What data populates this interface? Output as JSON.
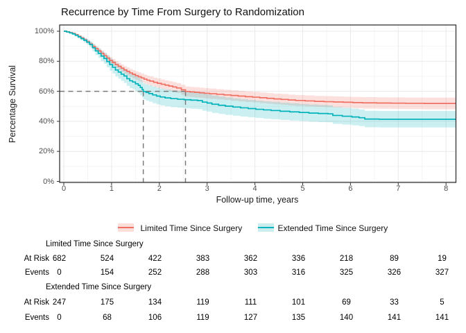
{
  "title": "Recurrence by Time From Surgery to Randomization",
  "axes": {
    "x_label": "Follow-up time, years",
    "y_label": "Percentage Survival",
    "x_ticks": [
      {
        "v": 0,
        "label": "0"
      },
      {
        "v": 1,
        "label": "1"
      },
      {
        "v": 2,
        "label": "2"
      },
      {
        "v": 3,
        "label": "3"
      },
      {
        "v": 4,
        "label": "4"
      },
      {
        "v": 5,
        "label": "5"
      },
      {
        "v": 6,
        "label": "6"
      },
      {
        "v": 7,
        "label": "7"
      },
      {
        "v": 8,
        "label": "8"
      }
    ],
    "y_ticks": [
      {
        "v": 0,
        "label": "0%"
      },
      {
        "v": 20,
        "label": "20%"
      },
      {
        "v": 40,
        "label": "40%"
      },
      {
        "v": 60,
        "label": "60%"
      },
      {
        "v": 80,
        "label": "80%"
      },
      {
        "v": 100,
        "label": "100%"
      }
    ]
  },
  "legend": {
    "items": [
      {
        "label": "Limited Time Since Surgery",
        "line_color": "#EF6F62",
        "key_bg": "#FBDDD9"
      },
      {
        "label": "Extended Time Since Surgery",
        "line_color": "#00B2BA",
        "key_bg": "#CBEDEE"
      }
    ]
  },
  "chart_data": {
    "type": "line",
    "subtype": "kaplan-meier-step",
    "title": "Recurrence by Time From Surgery to Randomization",
    "xlabel": "Follow-up time, years",
    "ylabel": "Percentage Survival",
    "xlim": [
      0,
      8.2
    ],
    "ylim": [
      0,
      100
    ],
    "grid": {
      "major_color": "#E9E9E9",
      "minor_color": "#F4F4F4",
      "border_color": "#333333"
    },
    "guides": {
      "color": "#7A7A7A",
      "y_percent": 60,
      "x_values": [
        1.664,
        2.547
      ]
    },
    "series": [
      {
        "name": "Limited Time Since Surgery",
        "color": "#EF6F62",
        "band_fill": "rgba(240,112,100,0.22)",
        "points_format": [
          "time_years",
          "survival_percent",
          "ci_halfwidth_percent"
        ],
        "points": [
          [
            0,
            100,
            0
          ],
          [
            0.06,
            99.6,
            0.2
          ],
          [
            0.12,
            99.1,
            0.3
          ],
          [
            0.18,
            98.5,
            0.45
          ],
          [
            0.24,
            97.7,
            0.6
          ],
          [
            0.3,
            96.6,
            0.75
          ],
          [
            0.36,
            95.5,
            0.9
          ],
          [
            0.42,
            94.3,
            1.05
          ],
          [
            0.48,
            93,
            1.15
          ],
          [
            0.54,
            91.5,
            1.3
          ],
          [
            0.6,
            89.9,
            1.5
          ],
          [
            0.66,
            88.4,
            1.6
          ],
          [
            0.72,
            86.9,
            1.7
          ],
          [
            0.78,
            85.3,
            1.85
          ],
          [
            0.84,
            83.7,
            1.95
          ],
          [
            0.9,
            82.1,
            2.1
          ],
          [
            0.96,
            80.5,
            2.2
          ],
          [
            1.02,
            79.2,
            2.3
          ],
          [
            1.08,
            77.8,
            2.4
          ],
          [
            1.14,
            76.6,
            2.45
          ],
          [
            1.2,
            75.4,
            2.5
          ],
          [
            1.26,
            74.2,
            2.6
          ],
          [
            1.32,
            73.2,
            2.65
          ],
          [
            1.38,
            72.2,
            2.7
          ],
          [
            1.44,
            71.3,
            2.75
          ],
          [
            1.5,
            70.4,
            2.8
          ],
          [
            1.56,
            69.7,
            2.85
          ],
          [
            1.62,
            68.9,
            2.9
          ],
          [
            1.68,
            68.1,
            2.95
          ],
          [
            1.74,
            67.4,
            3
          ],
          [
            1.8,
            66.8,
            3.05
          ],
          [
            1.88,
            66,
            3.1
          ],
          [
            1.96,
            65.3,
            3.15
          ],
          [
            2.04,
            64.7,
            3.2
          ],
          [
            2.12,
            64.1,
            3.2
          ],
          [
            2.2,
            63.5,
            3.25
          ],
          [
            2.28,
            62.9,
            3.25
          ],
          [
            2.36,
            62.2,
            3.3
          ],
          [
            2.46,
            61,
            3.3
          ],
          [
            2.547,
            59.9,
            3.35
          ],
          [
            2.64,
            59.6,
            3.35
          ],
          [
            2.74,
            59.3,
            3.4
          ],
          [
            2.84,
            59,
            3.4
          ],
          [
            2.94,
            58.7,
            3.4
          ],
          [
            3.05,
            58.4,
            3.45
          ],
          [
            3.2,
            58,
            3.45
          ],
          [
            3.35,
            57.6,
            3.45
          ],
          [
            3.5,
            57.2,
            3.5
          ],
          [
            3.65,
            56.8,
            3.5
          ],
          [
            3.8,
            56.4,
            3.5
          ],
          [
            3.95,
            56.1,
            3.5
          ],
          [
            4.1,
            55.7,
            3.55
          ],
          [
            4.25,
            55.3,
            3.55
          ],
          [
            4.4,
            54.9,
            3.55
          ],
          [
            4.55,
            54.6,
            3.6
          ],
          [
            4.7,
            54.2,
            3.6
          ],
          [
            4.85,
            53.9,
            3.6
          ],
          [
            5.05,
            53.6,
            3.65
          ],
          [
            5.25,
            53.3,
            3.65
          ],
          [
            5.45,
            53.1,
            3.7
          ],
          [
            5.65,
            52.9,
            3.7
          ],
          [
            5.85,
            52.7,
            3.7
          ],
          [
            6.05,
            52.5,
            3.75
          ],
          [
            6.25,
            52.3,
            3.8
          ],
          [
            6.55,
            52.2,
            3.8
          ],
          [
            6.85,
            52.1,
            3.85
          ],
          [
            7.15,
            52,
            3.85
          ],
          [
            7.55,
            51.9,
            3.9
          ],
          [
            8.2,
            51.8,
            3.9
          ]
        ]
      },
      {
        "name": "Extended Time Since Surgery",
        "color": "#00B2BA",
        "band_fill": "rgba(0,180,188,0.20)",
        "points_format": [
          "time_years",
          "survival_percent",
          "ci_halfwidth_percent"
        ],
        "points": [
          [
            0,
            100,
            0
          ],
          [
            0.06,
            99.5,
            0.3
          ],
          [
            0.12,
            98.9,
            0.5
          ],
          [
            0.18,
            98.2,
            0.7
          ],
          [
            0.24,
            97.3,
            0.9
          ],
          [
            0.3,
            96.2,
            1.1
          ],
          [
            0.36,
            95.1,
            1.3
          ],
          [
            0.42,
            94,
            1.5
          ],
          [
            0.48,
            92.7,
            1.7
          ],
          [
            0.54,
            91.2,
            2
          ],
          [
            0.6,
            89,
            2.4
          ],
          [
            0.66,
            86.9,
            2.7
          ],
          [
            0.72,
            85.2,
            3
          ],
          [
            0.78,
            83.4,
            3.3
          ],
          [
            0.84,
            81.8,
            3.5
          ],
          [
            0.9,
            79.8,
            3.8
          ],
          [
            0.96,
            77.8,
            4
          ],
          [
            1.02,
            76,
            4.2
          ],
          [
            1.08,
            74.2,
            4.3
          ],
          [
            1.14,
            72.8,
            4.4
          ],
          [
            1.2,
            71.4,
            4.5
          ],
          [
            1.26,
            70.2,
            4.6
          ],
          [
            1.32,
            68.4,
            4.75
          ],
          [
            1.38,
            67,
            4.85
          ],
          [
            1.44,
            66.2,
            4.9
          ],
          [
            1.5,
            65,
            5
          ],
          [
            1.56,
            63.9,
            5.1
          ],
          [
            1.6,
            62.6,
            5.2
          ],
          [
            1.64,
            61.2,
            5.25
          ],
          [
            1.664,
            59.9,
            5.3
          ],
          [
            1.72,
            59.2,
            5.4
          ],
          [
            1.78,
            58.5,
            5.45
          ],
          [
            1.86,
            57.6,
            5.5
          ],
          [
            1.94,
            56.8,
            5.55
          ],
          [
            2.02,
            56.2,
            5.6
          ],
          [
            2.12,
            55.6,
            5.6
          ],
          [
            2.24,
            55.1,
            5.65
          ],
          [
            2.38,
            54.7,
            5.65
          ],
          [
            2.52,
            54.4,
            5.7
          ],
          [
            2.66,
            54.1,
            5.7
          ],
          [
            2.8,
            53.8,
            5.7
          ],
          [
            2.9,
            52.8,
            5.75
          ],
          [
            3,
            52.2,
            5.75
          ],
          [
            3.1,
            51.4,
            5.8
          ],
          [
            3.24,
            50.7,
            5.8
          ],
          [
            3.38,
            50.1,
            5.8
          ],
          [
            3.54,
            49.5,
            5.8
          ],
          [
            3.7,
            49,
            5.8
          ],
          [
            3.86,
            48.5,
            5.8
          ],
          [
            4.02,
            48,
            5.8
          ],
          [
            4.18,
            47.6,
            5.8
          ],
          [
            4.34,
            47.2,
            5.8
          ],
          [
            4.53,
            46.7,
            5.75
          ],
          [
            4.73,
            46.3,
            5.75
          ],
          [
            4.93,
            45.9,
            5.7
          ],
          [
            5.13,
            45.5,
            5.7
          ],
          [
            5.33,
            45.2,
            5.7
          ],
          [
            5.53,
            45,
            5.65
          ],
          [
            5.63,
            43.9,
            5.6
          ],
          [
            5.83,
            43.4,
            5.6
          ],
          [
            6.03,
            42.9,
            5.6
          ],
          [
            6.18,
            42.4,
            5.55
          ],
          [
            6.3,
            41.5,
            5.5
          ],
          [
            6.6,
            41.4,
            5.5
          ],
          [
            7,
            41.4,
            5.5
          ],
          [
            8.2,
            41.4,
            5.5
          ]
        ]
      }
    ]
  },
  "risk_table": {
    "groups": [
      {
        "name": "Limited Time Since Surgery",
        "rows": [
          {
            "label": "At Risk",
            "values": [
              "682",
              "524",
              "422",
              "383",
              "362",
              "336",
              "218",
              "89",
              "19"
            ]
          },
          {
            "label": "Events",
            "values": [
              "0",
              "154",
              "252",
              "288",
              "303",
              "316",
              "325",
              "326",
              "327"
            ]
          }
        ]
      },
      {
        "name": "Extended Time Since Surgery",
        "rows": [
          {
            "label": "At Risk",
            "values": [
              "247",
              "175",
              "134",
              "119",
              "111",
              "101",
              "69",
              "33",
              "5"
            ]
          },
          {
            "label": "Events",
            "values": [
              "0",
              "68",
              "106",
              "119",
              "127",
              "135",
              "140",
              "141",
              "141"
            ]
          }
        ]
      }
    ]
  }
}
